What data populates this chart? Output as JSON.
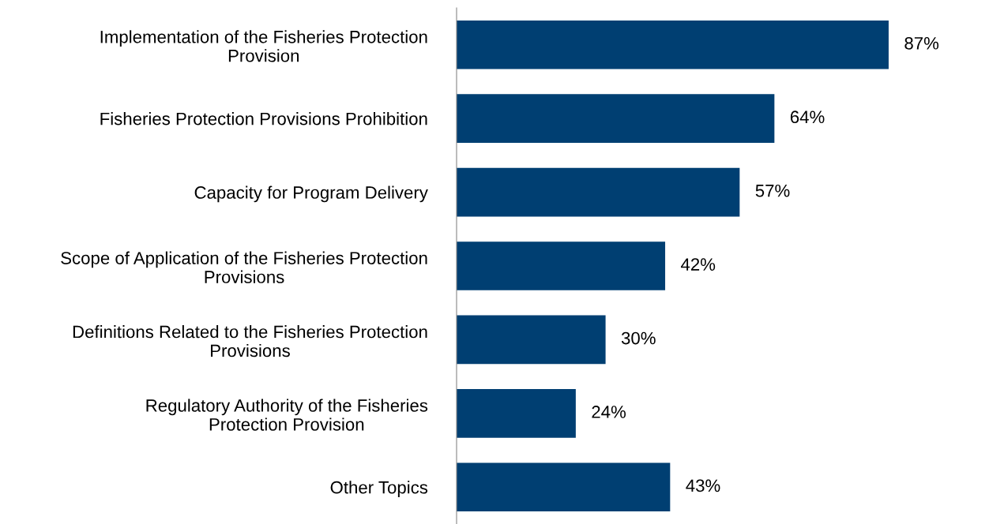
{
  "chart_data": {
    "type": "bar",
    "orientation": "horizontal",
    "categories": [
      "Implementation of the Fisheries Protection\nProvision",
      "Fisheries Protection Provisions Prohibition",
      "Capacity for Program Delivery",
      "Scope of Application of the Fisheries Protection\nProvisions",
      "Definitions Related to the Fisheries Protection\nProvisions",
      "Regulatory Authority of the Fisheries\nProtection Provision",
      "Other Topics"
    ],
    "values": [
      87,
      64,
      57,
      42,
      30,
      24,
      43
    ],
    "value_labels": [
      "87%",
      "64%",
      "57%",
      "42%",
      "30%",
      "24%",
      "43%"
    ],
    "color": "#003f72",
    "grid": false,
    "legend": false
  }
}
